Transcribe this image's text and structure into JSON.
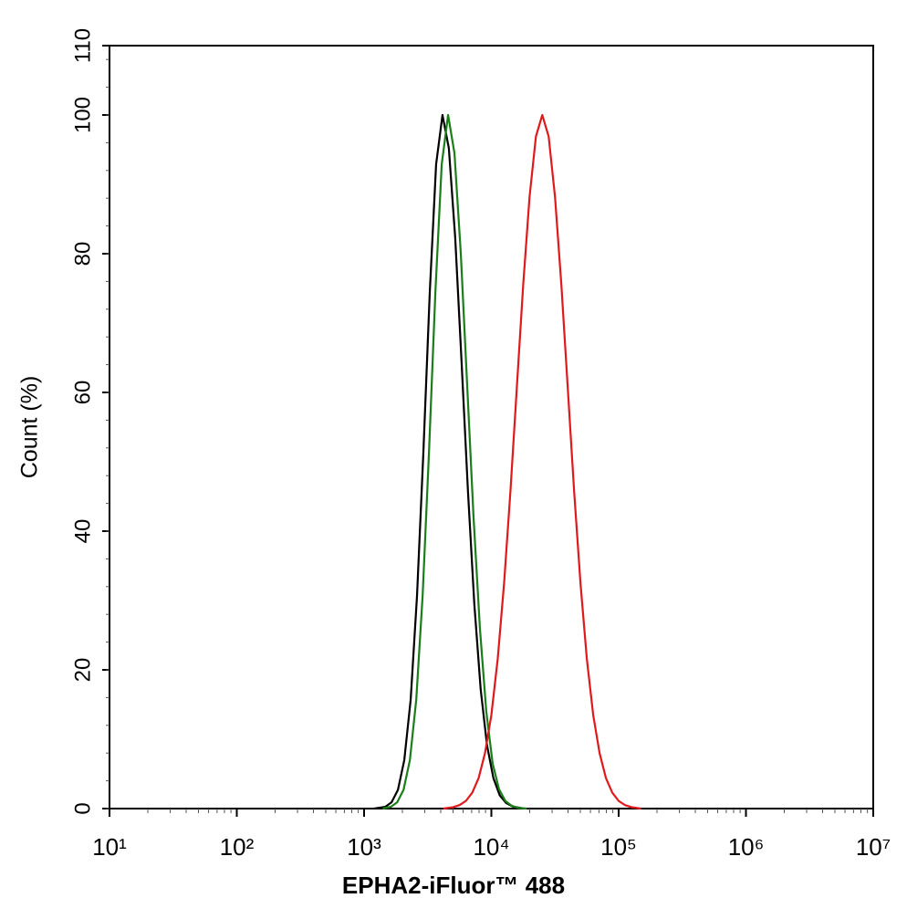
{
  "chart_data": {
    "type": "line",
    "xscale": "log",
    "xlabel": "EPHA2-iFluor™ 488",
    "ylabel": "Count  (%)",
    "xlim": [
      10,
      10000000
    ],
    "ylim": [
      0,
      110
    ],
    "xticks": [
      {
        "value": 10,
        "label": "10¹"
      },
      {
        "value": 100,
        "label": "10²"
      },
      {
        "value": 1000,
        "label": "10³"
      },
      {
        "value": 10000,
        "label": "10⁴"
      },
      {
        "value": 100000,
        "label": "10⁵"
      },
      {
        "value": 1000000,
        "label": "10⁶"
      },
      {
        "value": 10000000,
        "label": "10⁷"
      }
    ],
    "yticks": [
      0,
      20,
      40,
      60,
      80,
      100,
      110
    ],
    "series": [
      {
        "color": "#000000",
        "x": [
          1200,
          1466,
          1644,
          1845,
          2070,
          2323,
          2606,
          2924,
          3281,
          3681,
          4130,
          4634,
          5200,
          5834,
          6546,
          7345,
          8241,
          9247,
          10375,
          11641,
          13062,
          14656,
          18000
        ],
        "values": [
          0,
          0.25,
          0.9,
          2.7,
          7.0,
          15.7,
          30.7,
          51.4,
          74.4,
          92.9,
          100,
          95.2,
          82.3,
          64.4,
          45.8,
          29.5,
          17.2,
          9.1,
          4.4,
          1.9,
          0.8,
          0.3,
          0
        ]
      },
      {
        "color": "#1a7f1a",
        "x": [
          1400,
          1622,
          1820,
          2042,
          2291,
          2570,
          2884,
          3236,
          3631,
          4074,
          4571,
          5129,
          5754,
          6457,
          7244,
          8128,
          9120,
          10233,
          11482,
          12882,
          14454,
          16218,
          19000
        ],
        "values": [
          0,
          0.25,
          0.9,
          2.7,
          7.0,
          15.7,
          30.7,
          51.4,
          74.4,
          92.9,
          100,
          94.5,
          80,
          61,
          42,
          26,
          14,
          6.5,
          2.8,
          1.1,
          0.4,
          0.1,
          0
        ]
      },
      {
        "color": "#e0191c",
        "x": [
          4200,
          5012,
          5623,
          6310,
          7079,
          7943,
          8913,
          10000,
          11220,
          12589,
          14125,
          15849,
          17783,
          19953,
          22387,
          25119,
          28184,
          31623,
          35481,
          39811,
          44668,
          50119,
          56234,
          63096,
          70795,
          79433,
          89125,
          100000,
          112202,
          125893,
          150000
        ],
        "values": [
          0,
          0.2,
          0.5,
          1.1,
          2.3,
          4.4,
          8.0,
          13.5,
          21.6,
          32.5,
          45.8,
          60.7,
          75.5,
          88.2,
          96.9,
          100,
          96.9,
          88.2,
          75.5,
          60.7,
          45.8,
          32.5,
          21.6,
          13.5,
          8.0,
          4.4,
          2.3,
          1.1,
          0.5,
          0.2,
          0
        ]
      }
    ]
  }
}
